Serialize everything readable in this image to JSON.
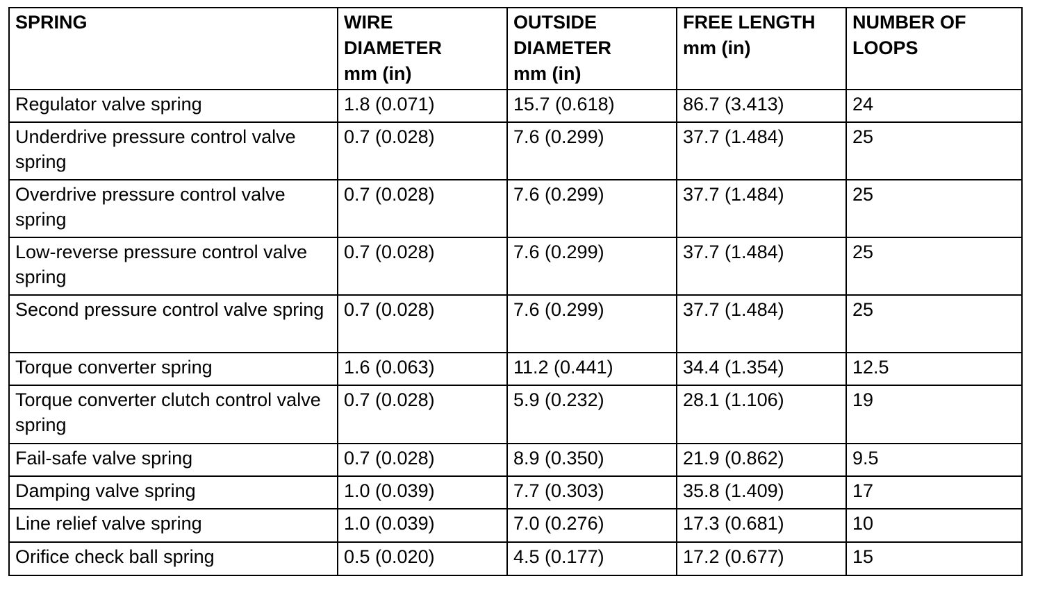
{
  "table": {
    "headers": [
      "SPRING",
      "WIRE\nDIAMETER\nmm (in)",
      "OUTSIDE\nDIAMETER\nmm (in)",
      "FREE LENGTH\nmm (in)",
      "NUMBER OF\nLOOPS"
    ],
    "rows": [
      [
        "Regulator valve spring",
        "1.8 (0.071)",
        "15.7 (0.618)",
        "86.7 (3.413)",
        "24"
      ],
      [
        "Underdrive pressure control valve spring",
        "0.7 (0.028)",
        "7.6 (0.299)",
        "37.7 (1.484)",
        "25"
      ],
      [
        "Overdrive pressure control valve spring",
        "0.7 (0.028)",
        "7.6 (0.299)",
        "37.7 (1.484)",
        "25"
      ],
      [
        "Low-reverse pressure control valve spring",
        "0.7 (0.028)",
        "7.6 (0.299)",
        "37.7 (1.484)",
        "25"
      ],
      [
        "Second pressure control valve spring",
        "0.7 (0.028)",
        "7.6 (0.299)",
        "37.7 (1.484)",
        "25"
      ],
      [
        "Torque converter spring",
        "1.6 (0.063)",
        "11.2 (0.441)",
        "34.4 (1.354)",
        "12.5"
      ],
      [
        "Torque converter clutch control valve spring",
        "0.7 (0.028)",
        "5.9 (0.232)",
        "28.1 (1.106)",
        "19"
      ],
      [
        "Fail-safe valve spring",
        "0.7 (0.028)",
        "8.9 (0.350)",
        "21.9 (0.862)",
        "9.5"
      ],
      [
        "Damping valve spring",
        "1.0 (0.039)",
        "7.7 (0.303)",
        "35.8 (1.409)",
        "17"
      ],
      [
        "Line relief valve spring",
        "1.0 (0.039)",
        "7.0 (0.276)",
        "17.3 (0.681)",
        "10"
      ],
      [
        "Orifice check ball spring",
        "0.5 (0.020)",
        "4.5 (0.177)",
        "17.2 (0.677)",
        "15"
      ]
    ]
  }
}
